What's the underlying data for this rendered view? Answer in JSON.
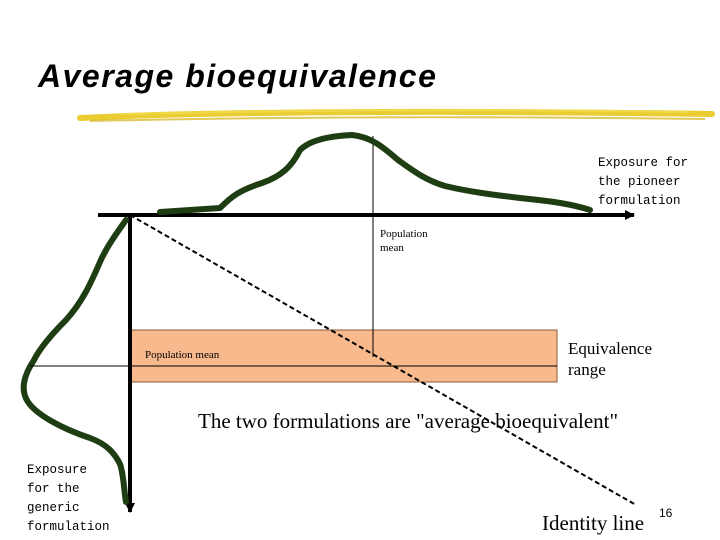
{
  "slide": {
    "title": "Average bioequivalence",
    "x_axis_label": "Exposure for the pioneer formulation",
    "y_axis_label": "Exposure for the generic formulation",
    "population_mean_top": "Population mean",
    "population_mean_left": "Population mean",
    "equivalence_range": "Equivalence range",
    "statement": "The two formulations are \"average bioequivalent\"",
    "identity_line": "Identity line",
    "page_number": "16"
  },
  "colors": {
    "curve": "#1f3d12",
    "range_fill": "#f8b98c",
    "range_stroke": "#8a5a3a",
    "title_underline": "#e8c81c"
  }
}
